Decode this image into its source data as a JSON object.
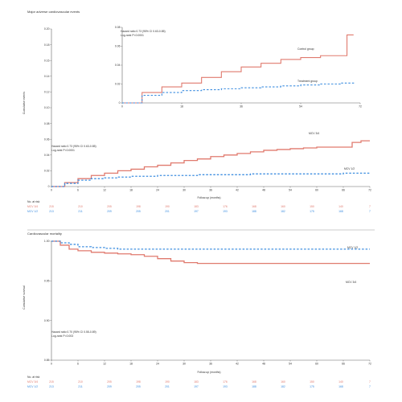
{
  "colors": {
    "red": "#e07a6e",
    "blue": "#3f8fe0",
    "axis": "#666666"
  },
  "panel_a": {
    "title": "Major adverse cardiovascular events",
    "ylabel": "Cumulative events",
    "xlabel": "Follow-up (months)",
    "stats_line1": "Hazard ratio 0.73 (95% CI 0.63-0.85)",
    "stats_line2": "Log-rank P<0.0001",
    "label_red": "MCV 3/4",
    "label_blue": "MCV 1/2",
    "inset": {
      "stats_line1": "Hazard ratio 0.73 (95% CI 0.63-0.85)",
      "stats_line2": "Log-rank P<0.0001",
      "label_red": "Control group",
      "label_blue": "Treatment group"
    },
    "risk": {
      "title": "No. at risk",
      "group_red": "MCV 3/4",
      "group_blue": "MCV 1/2",
      "row_red": [
        "215",
        "210",
        "205",
        "198",
        "190",
        "183",
        "176",
        "168",
        "160",
        "150",
        "140",
        "7"
      ],
      "row_blue": [
        "213",
        "211",
        "209",
        "205",
        "201",
        "197",
        "193",
        "188",
        "182",
        "175",
        "168",
        "7"
      ]
    }
  },
  "panel_b": {
    "title": "Cardiovascular mortality",
    "ylabel": "Cumulative survival",
    "xlabel": "Follow-up (months)",
    "stats_line1": "Hazard ratio 0.70 (95% CI 0.55-0.89)",
    "stats_line2": "Log-rank P=0.003",
    "label_red": "MCV 3/4",
    "label_blue": "MCV 1/2",
    "risk": {
      "title": "No. at risk",
      "group_red": "MCV 3/4",
      "group_blue": "MCV 1/2",
      "row_red": [
        "215",
        "210",
        "205",
        "198",
        "190",
        "183",
        "176",
        "168",
        "160",
        "150",
        "140",
        "7"
      ],
      "row_blue": [
        "213",
        "211",
        "209",
        "205",
        "201",
        "197",
        "193",
        "188",
        "182",
        "175",
        "168",
        "7"
      ]
    }
  },
  "chart_data": [
    {
      "type": "line",
      "title": "Major adverse cardiovascular events",
      "xlabel": "Follow-up (months)",
      "ylabel": "Cumulative events",
      "xlim": [
        0,
        72
      ],
      "ylim": [
        0,
        0.2
      ],
      "x_ticks": [
        "0",
        "6",
        "12",
        "18",
        "24",
        "30",
        "36",
        "42",
        "48",
        "54",
        "60",
        "66",
        "72"
      ],
      "y_ticks": [
        "0",
        "0.02",
        "0.04",
        "0.06",
        "0.08",
        "0.10",
        "0.12",
        "0.14",
        "0.16",
        "0.18",
        "0.20"
      ],
      "series": [
        {
          "name": "MCV 3/4",
          "color": "#e07a6e",
          "style": "solid",
          "x": [
            0,
            3,
            6,
            9,
            12,
            15,
            18,
            21,
            24,
            27,
            30,
            33,
            36,
            39,
            42,
            45,
            48,
            51,
            54,
            57,
            60,
            63,
            66,
            68,
            70,
            72
          ],
          "y": [
            0,
            0.005,
            0.01,
            0.014,
            0.017,
            0.02,
            0.022,
            0.025,
            0.027,
            0.03,
            0.033,
            0.035,
            0.038,
            0.04,
            0.042,
            0.044,
            0.046,
            0.047,
            0.048,
            0.049,
            0.05,
            0.05,
            0.05,
            0.056,
            0.058,
            0.058
          ]
        },
        {
          "name": "MCV 1/2",
          "color": "#3f8fe0",
          "style": "dashed",
          "x": [
            0,
            3,
            6,
            9,
            12,
            15,
            18,
            21,
            24,
            27,
            30,
            33,
            36,
            39,
            42,
            45,
            48,
            51,
            54,
            57,
            60,
            63,
            66,
            69,
            72
          ],
          "y": [
            0,
            0.004,
            0.008,
            0.01,
            0.011,
            0.012,
            0.013,
            0.013,
            0.014,
            0.014,
            0.014,
            0.015,
            0.015,
            0.015,
            0.015,
            0.016,
            0.016,
            0.016,
            0.016,
            0.016,
            0.016,
            0.016,
            0.017,
            0.017,
            0.017
          ]
        }
      ],
      "inset": {
        "xlim": [
          0,
          72
        ],
        "ylim": [
          0,
          0.08
        ],
        "x_ticks": [
          "0",
          "18",
          "36",
          "54",
          "72"
        ],
        "y_ticks": [
          "0",
          "0.02",
          "0.04",
          "0.06",
          "0.08"
        ],
        "series": [
          {
            "name": "Control group",
            "color": "#e07a6e",
            "x": [
              0,
              6,
              12,
              18,
              24,
              30,
              36,
              42,
              48,
              54,
              60,
              66,
              68,
              70
            ],
            "y": [
              0,
              0.011,
              0.017,
              0.021,
              0.027,
              0.033,
              0.038,
              0.042,
              0.046,
              0.048,
              0.05,
              0.05,
              0.072,
              0.072
            ]
          },
          {
            "name": "Treatment group",
            "color": "#3f8fe0",
            "x": [
              0,
              6,
              12,
              18,
              24,
              30,
              36,
              42,
              48,
              54,
              60,
              66,
              70
            ],
            "y": [
              0,
              0.008,
              0.011,
              0.013,
              0.014,
              0.015,
              0.016,
              0.017,
              0.018,
              0.019,
              0.02,
              0.021,
              0.022
            ]
          }
        ]
      }
    },
    {
      "type": "line",
      "title": "Cardiovascular mortality",
      "xlabel": "Follow-up (months)",
      "ylabel": "Cumulative survival",
      "xlim": [
        0,
        72
      ],
      "ylim": [
        0.85,
        1.0
      ],
      "x_ticks": [
        "0",
        "6",
        "12",
        "18",
        "24",
        "30",
        "36",
        "42",
        "48",
        "54",
        "60",
        "66",
        "72"
      ],
      "y_ticks": [
        "0.85",
        "0.90",
        "0.95",
        "1.00"
      ],
      "series": [
        {
          "name": "MCV 3/4",
          "color": "#e07a6e",
          "style": "solid",
          "x": [
            0,
            2,
            4,
            6,
            9,
            12,
            15,
            18,
            21,
            24,
            27,
            30,
            33,
            36,
            42,
            48,
            54,
            60,
            66,
            72
          ],
          "y": [
            1.0,
            0.995,
            0.99,
            0.988,
            0.986,
            0.985,
            0.984,
            0.983,
            0.981,
            0.978,
            0.975,
            0.973,
            0.972,
            0.972,
            0.972,
            0.972,
            0.972,
            0.972,
            0.972,
            0.972
          ]
        },
        {
          "name": "MCV 1/2",
          "color": "#3f8fe0",
          "style": "dashed",
          "x": [
            0,
            2,
            4,
            6,
            9,
            12,
            15,
            18,
            24,
            30,
            36,
            42,
            48,
            54,
            60,
            66,
            72
          ],
          "y": [
            1.0,
            0.998,
            0.996,
            0.993,
            0.992,
            0.991,
            0.99,
            0.99,
            0.99,
            0.99,
            0.99,
            0.99,
            0.99,
            0.99,
            0.99,
            0.99,
            0.99
          ]
        }
      ]
    }
  ]
}
